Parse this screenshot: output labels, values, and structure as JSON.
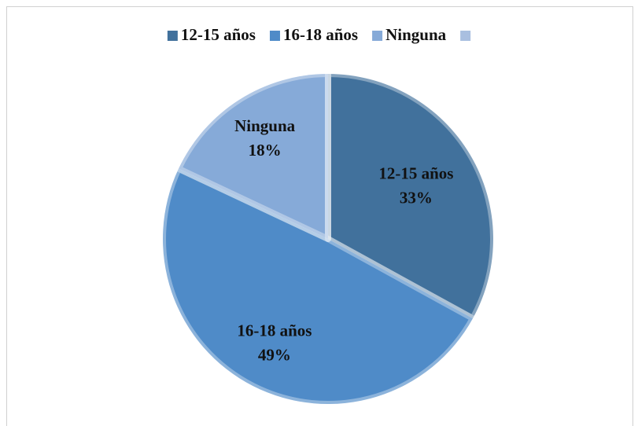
{
  "chart_data": {
    "type": "pie",
    "categories": [
      "12-15 años",
      "16-18 años",
      "Ninguna",
      null
    ],
    "values": [
      33,
      49,
      18,
      0
    ],
    "value_labels": [
      "33%",
      "49%",
      "18%",
      null
    ],
    "colors": [
      "#41719c",
      "#4f8bc8",
      "#86aad8",
      "#a9bfe0"
    ],
    "legend": "top"
  }
}
